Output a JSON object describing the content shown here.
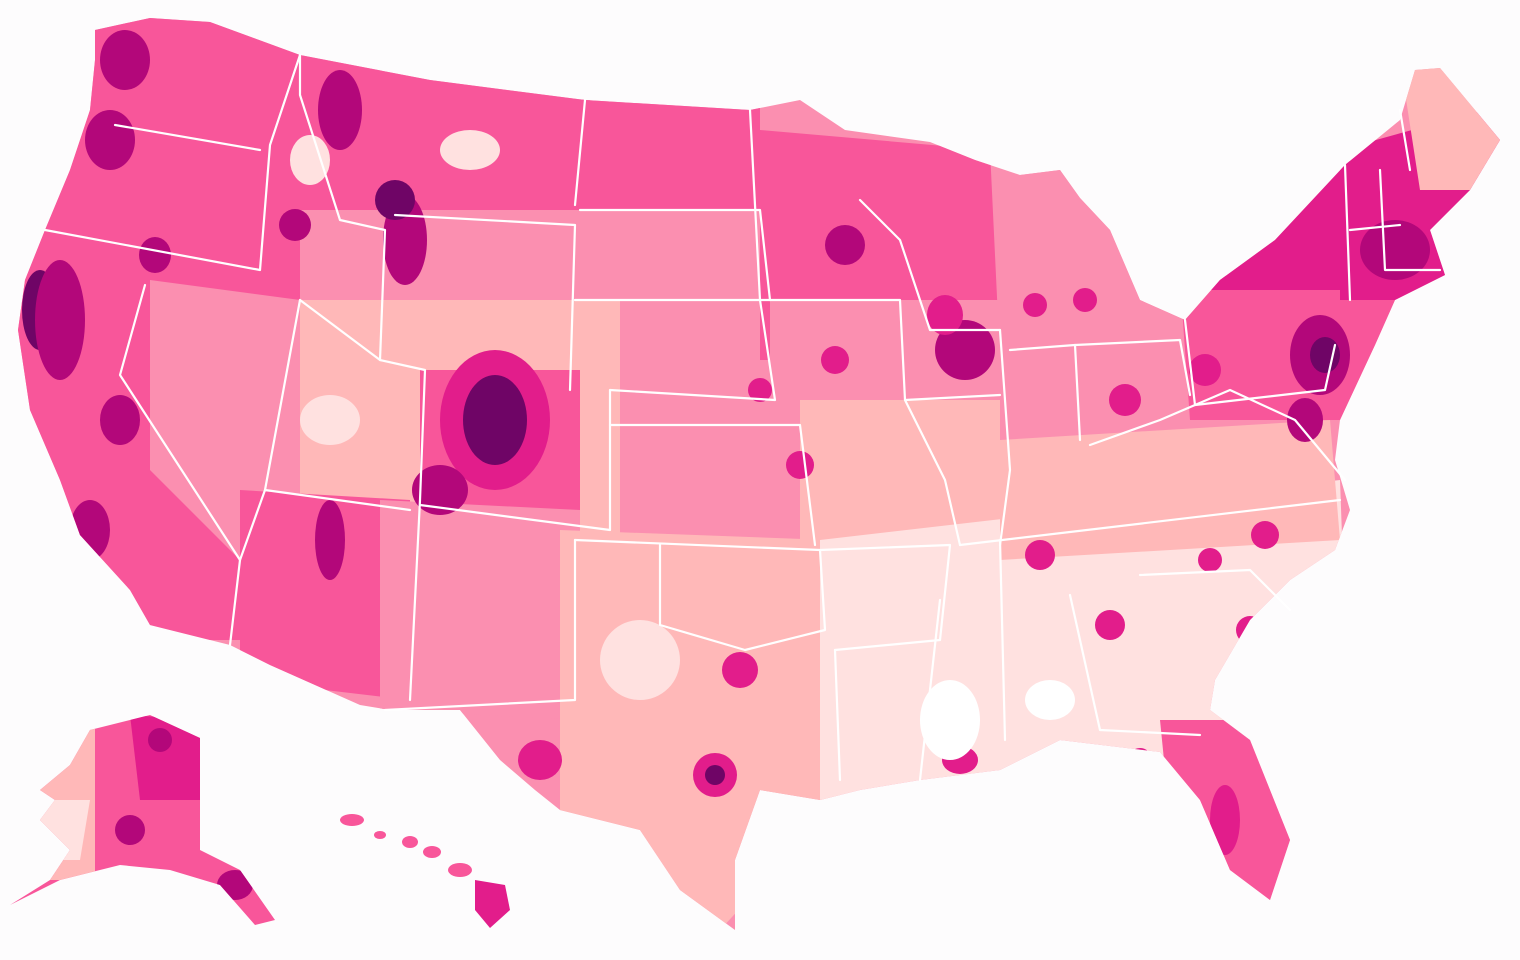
{
  "map": {
    "palette": {
      "background": "#fdfcfd",
      "level_0": "#ffe1e0",
      "level_1": "#ffb8b8",
      "level_2": "#fb8fb0",
      "level_3": "#f8569a",
      "level_4": "#e21d8b",
      "level_5": "#b3077a",
      "level_6": "#6f0566",
      "border": "#ffffff"
    },
    "regions": [
      {
        "name": "west-coast",
        "level": 4
      },
      {
        "name": "mountain-north",
        "level": 3
      },
      {
        "name": "great-basin",
        "level": 2
      },
      {
        "name": "southwest",
        "level": 3
      },
      {
        "name": "colorado-front-range",
        "level": 6
      },
      {
        "name": "great-plains",
        "level": 2
      },
      {
        "name": "upper-midwest",
        "level": 3
      },
      {
        "name": "midwest",
        "level": 2
      },
      {
        "name": "northeast",
        "level": 4
      },
      {
        "name": "mid-atlantic",
        "level": 5
      },
      {
        "name": "southeast",
        "level": 0
      },
      {
        "name": "texas",
        "level": 1
      },
      {
        "name": "florida",
        "level": 3
      },
      {
        "name": "alaska",
        "level": 4
      },
      {
        "name": "hawaii",
        "level": 3
      }
    ]
  }
}
